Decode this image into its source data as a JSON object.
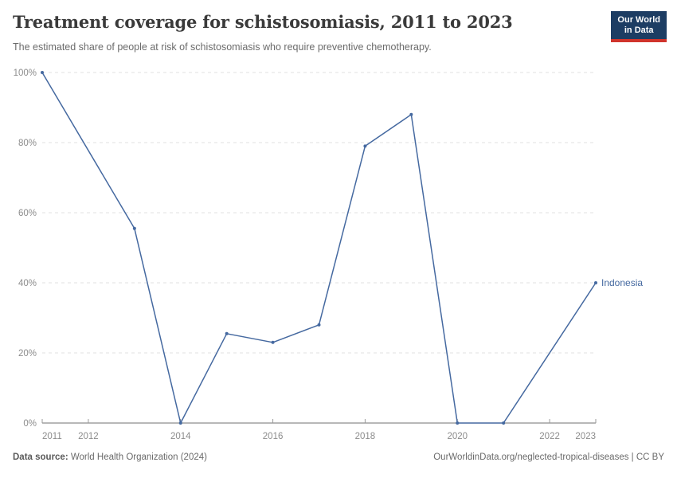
{
  "header": {
    "title": "Treatment coverage for schistosomiasis, 2011 to 2023",
    "subtitle": "The estimated share of people at risk of schistosomiasis who require preventive chemotherapy.",
    "logo": {
      "line1": "Our World",
      "line2": "in Data",
      "bg_color": "#1d3d63",
      "accent_color": "#d0342c"
    }
  },
  "chart_data": {
    "type": "line",
    "title": "Treatment coverage for schistosomiasis, 2011 to 2023",
    "xlabel": "",
    "ylabel": "",
    "xlim": [
      2011,
      2023
    ],
    "ylim": [
      0,
      100
    ],
    "grid": "horizontal-dashed",
    "legend_position": "end-of-line-label",
    "x": [
      2011,
      2013,
      2014,
      2015,
      2016,
      2017,
      2018,
      2019,
      2020,
      2021,
      2023
    ],
    "series": [
      {
        "name": "Indonesia",
        "color": "#4569a0",
        "values": [
          100,
          55.5,
          0,
          25.5,
          23,
          28,
          79,
          88,
          0,
          0,
          40
        ]
      }
    ],
    "yticks": [
      {
        "value": 0,
        "label": "0%"
      },
      {
        "value": 20,
        "label": "20%"
      },
      {
        "value": 40,
        "label": "40%"
      },
      {
        "value": 60,
        "label": "60%"
      },
      {
        "value": 80,
        "label": "80%"
      },
      {
        "value": 100,
        "label": "100%"
      }
    ],
    "xticks": [
      {
        "value": 2011,
        "label": "2011"
      },
      {
        "value": 2012,
        "label": "2012"
      },
      {
        "value": 2014,
        "label": "2014"
      },
      {
        "value": 2016,
        "label": "2016"
      },
      {
        "value": 2018,
        "label": "2018"
      },
      {
        "value": 2020,
        "label": "2020"
      },
      {
        "value": 2022,
        "label": "2022"
      },
      {
        "value": 2023,
        "label": "2023"
      }
    ]
  },
  "footer": {
    "source_label": "Data source:",
    "source_text": "World Health Organization (2024)",
    "credit": "OurWorldinData.org/neglected-tropical-diseases | CC BY"
  }
}
